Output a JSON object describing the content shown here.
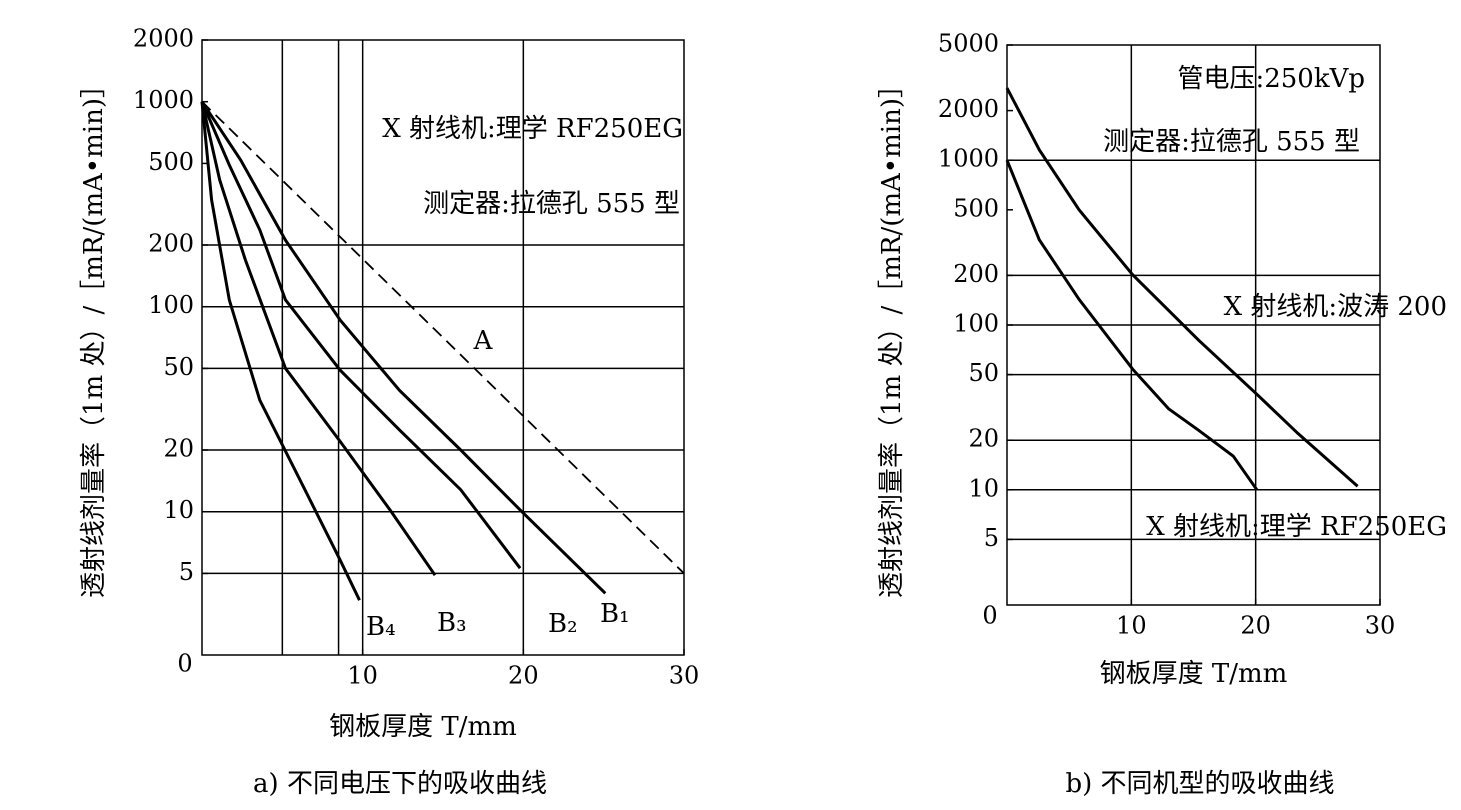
{
  "chart_data": [
    {
      "type": "line",
      "caption": "a) 不同电压下的吸收曲线",
      "xlabel": "钢板厚度 T/mm",
      "ylabel": "透射线剂量率（1m 处）/［mR/(mA•min)］",
      "origin_label": "0",
      "xlim": [
        0,
        30
      ],
      "xticks": [
        10,
        20,
        30
      ],
      "xgrid": [
        5,
        8.5,
        10,
        20
      ],
      "ylim": [
        2,
        2000
      ],
      "yticks": [
        2000,
        1000,
        500,
        200,
        100,
        50,
        20,
        10,
        5
      ],
      "ygrid": [
        200,
        100,
        50,
        20,
        10,
        5
      ],
      "log_y": true,
      "annotations": [
        "X 射线机:理学 RF250EG",
        "测定器:拉德孔 555 型"
      ],
      "series": [
        {
          "name": "A",
          "color": "#000000",
          "line_style": "dashed",
          "x": [
            0,
            30
          ],
          "values": [
            1000,
            5
          ]
        },
        {
          "name": "B₁",
          "color": "#000000",
          "line_style": "solid",
          "x": [
            0,
            2.4,
            5.2,
            8.6,
            12.3,
            16.1,
            19.8,
            25.1
          ],
          "values": [
            1000,
            520,
            211,
            86,
            39,
            20,
            10.2,
            4.0
          ]
        },
        {
          "name": "B₂",
          "color": "#000000",
          "line_style": "solid",
          "x": [
            0,
            1.7,
            3.6,
            5.2,
            8.6,
            12.3,
            16.1,
            19.8
          ],
          "values": [
            1000,
            491,
            237,
            108,
            49,
            25,
            12.8,
            5.3
          ]
        },
        {
          "name": "B₃",
          "color": "#000000",
          "line_style": "solid",
          "x": [
            0,
            1.1,
            2.7,
            5.2,
            8.6,
            11.7,
            14.5
          ],
          "values": [
            1000,
            415,
            169,
            50,
            22,
            10.2,
            4.9
          ]
        },
        {
          "name": "B₄",
          "color": "#000000",
          "line_style": "solid",
          "x": [
            0,
            0.6,
            1.7,
            3.6,
            6.1,
            8.6,
            9.8
          ],
          "values": [
            1000,
            332,
            108,
            35,
            14.3,
            5.8,
            3.7
          ]
        }
      ]
    },
    {
      "type": "line",
      "caption": "b) 不同机型的吸收曲线",
      "xlabel": "钢板厚度 T/mm",
      "ylabel": "透射线剂量率（1m 处）/［mR/(mA•min)］",
      "origin_label": "0",
      "xlim": [
        0,
        30
      ],
      "xticks": [
        10,
        20,
        30
      ],
      "xgrid": [
        10,
        20
      ],
      "ylim": [
        2,
        5000
      ],
      "yticks": [
        5000,
        2000,
        1000,
        500,
        200,
        100,
        50,
        20,
        10,
        5
      ],
      "ygrid": [
        1000,
        200,
        100,
        50,
        20,
        10,
        5
      ],
      "log_y": true,
      "annotations": [
        "管电压:250kVp",
        "测定器:拉德孔 555 型"
      ],
      "series": [
        {
          "name": "X 射线机:波涛 200",
          "color": "#000000",
          "line_style": "solid",
          "x": [
            0,
            2.6,
            5.8,
            10.1,
            15.4,
            20.1,
            23.4,
            28.2
          ],
          "values": [
            2740,
            1156,
            500,
            202,
            81,
            38,
            22,
            10.5
          ]
        },
        {
          "name": "X 射线机:理学 RF250EG",
          "color": "#000000",
          "line_style": "solid",
          "x": [
            0,
            2.6,
            5.8,
            10.1,
            13,
            15.4,
            18.2,
            20.1
          ],
          "values": [
            1000,
            329,
            143,
            54,
            31,
            23,
            16,
            10
          ]
        }
      ]
    }
  ]
}
